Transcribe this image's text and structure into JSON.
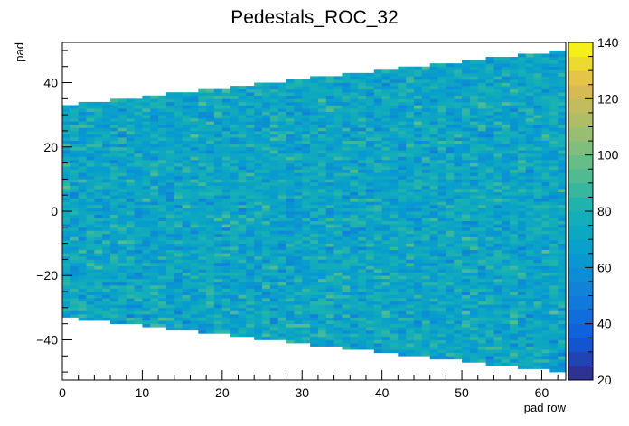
{
  "chart_data": {
    "type": "heatmap",
    "title": "Pedestals_ROC_32",
    "xlabel": "pad row",
    "ylabel": "pad",
    "xlim": [
      0,
      63
    ],
    "ylim": [
      -52.5,
      52.5
    ],
    "x_ticks": [
      0,
      10,
      20,
      30,
      40,
      50,
      60
    ],
    "y_ticks": [
      -40,
      -20,
      0,
      20,
      40
    ],
    "z_range": [
      20,
      140
    ],
    "z_ticks": [
      20,
      40,
      60,
      80,
      100,
      120,
      140
    ],
    "rows": 63,
    "half_pads_start": 33,
    "half_pads_end": 50,
    "value_mean": 72,
    "value_spread": 10
  }
}
